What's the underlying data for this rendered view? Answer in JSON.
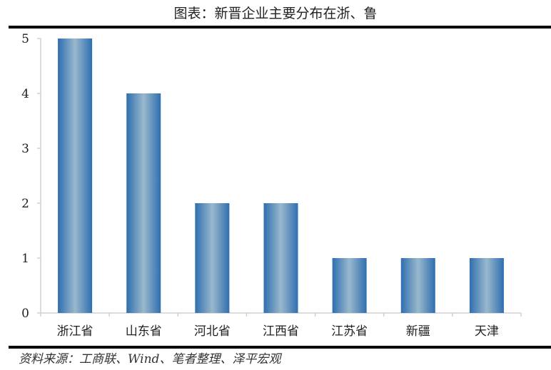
{
  "title": "图表：新晋企业主要分布在浙、鲁",
  "source": "资料来源：工商联、Wind、笔者整理、泽平宏观",
  "chart_data": {
    "type": "bar",
    "title": "图表：新晋企业主要分布在浙、鲁",
    "categories": [
      "浙江省",
      "山东省",
      "河北省",
      "江西省",
      "江苏省",
      "新疆",
      "天津"
    ],
    "values": [
      5,
      4,
      2,
      2,
      1,
      1,
      1
    ],
    "ylim": [
      0,
      5
    ],
    "yticks": [
      0,
      1,
      2,
      3,
      4,
      5
    ],
    "grid": false,
    "legend": "none",
    "colors": {
      "bar_edge": "#2e6fb0",
      "bar_center": "#9ab8cc",
      "axis": "#d0d0d0"
    }
  }
}
